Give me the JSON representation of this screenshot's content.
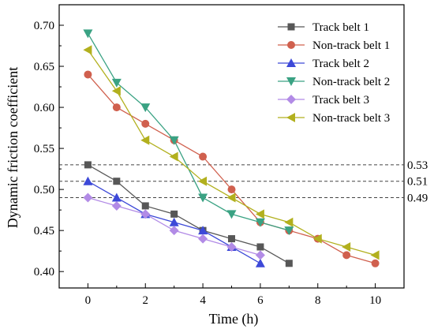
{
  "chart_data": {
    "type": "line",
    "xlabel": "Time (h)",
    "ylabel": "Dynamic friction coefficient",
    "xlim": [
      -1,
      11
    ],
    "ylim": [
      0.38,
      0.725
    ],
    "xticks": [
      "0",
      "2",
      "4",
      "6",
      "8",
      "10"
    ],
    "yticks": [
      "0.40",
      "0.45",
      "0.50",
      "0.55",
      "0.60",
      "0.65",
      "0.70"
    ],
    "legend_position": "top-right",
    "grid": false,
    "reference_lines": [
      {
        "y": 0.53,
        "label": "0.53"
      },
      {
        "y": 0.51,
        "label": "0.51"
      },
      {
        "y": 0.49,
        "label": "0.49"
      }
    ],
    "series": [
      {
        "name": "Track belt 1",
        "color": "#575757",
        "marker": "square",
        "x": [
          0,
          1,
          2,
          3,
          4,
          5,
          6,
          7
        ],
        "values": [
          0.53,
          0.51,
          0.48,
          0.47,
          0.45,
          0.44,
          0.43,
          0.41
        ]
      },
      {
        "name": "Non-track belt 1",
        "color": "#d0604e",
        "marker": "circle",
        "x": [
          0,
          1,
          2,
          3,
          4,
          5,
          6,
          7,
          8,
          9,
          10
        ],
        "values": [
          0.64,
          0.6,
          0.58,
          0.56,
          0.54,
          0.5,
          0.46,
          0.45,
          0.44,
          0.42,
          0.41
        ]
      },
      {
        "name": "Track belt 2",
        "color": "#3d49d8",
        "marker": "triangle-up",
        "x": [
          0,
          1,
          2,
          3,
          4,
          5,
          6
        ],
        "values": [
          0.51,
          0.49,
          0.47,
          0.46,
          0.45,
          0.43,
          0.41
        ]
      },
      {
        "name": "Non-track belt 2",
        "color": "#3aa283",
        "marker": "triangle-down",
        "x": [
          0,
          1,
          2,
          3,
          4,
          5,
          6,
          7
        ],
        "values": [
          0.69,
          0.63,
          0.6,
          0.56,
          0.49,
          0.47,
          0.46,
          0.45
        ]
      },
      {
        "name": "Track belt 3",
        "color": "#b28be6",
        "marker": "diamond",
        "x": [
          0,
          1,
          2,
          3,
          4,
          5,
          6
        ],
        "values": [
          0.49,
          0.48,
          0.47,
          0.45,
          0.44,
          0.43,
          0.42
        ]
      },
      {
        "name": "Non-track belt 3",
        "color": "#b2b01e",
        "marker": "triangle-left",
        "x": [
          0,
          1,
          2,
          3,
          4,
          5,
          6,
          7,
          8,
          9,
          10
        ],
        "values": [
          0.67,
          0.62,
          0.56,
          0.54,
          0.51,
          0.49,
          0.47,
          0.46,
          0.44,
          0.43,
          0.42
        ]
      }
    ]
  }
}
